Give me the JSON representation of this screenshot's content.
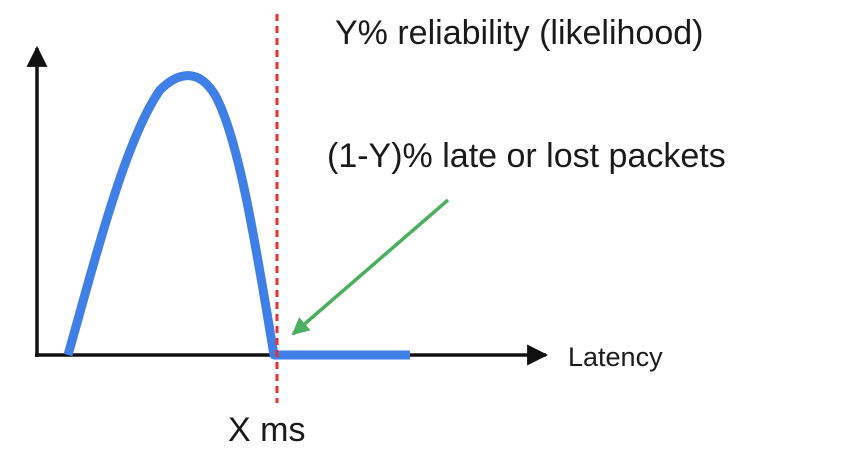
{
  "labels": {
    "reliability": "Y% reliability (likelihood)",
    "late_lost": "(1-Y)% late or lost packets",
    "x_axis": "Latency",
    "threshold": "X ms"
  },
  "colors": {
    "curve": "#3f7fe6",
    "threshold_line": "#e8312f",
    "pointer_arrow": "#4caf5f",
    "axes": "#111111"
  }
}
